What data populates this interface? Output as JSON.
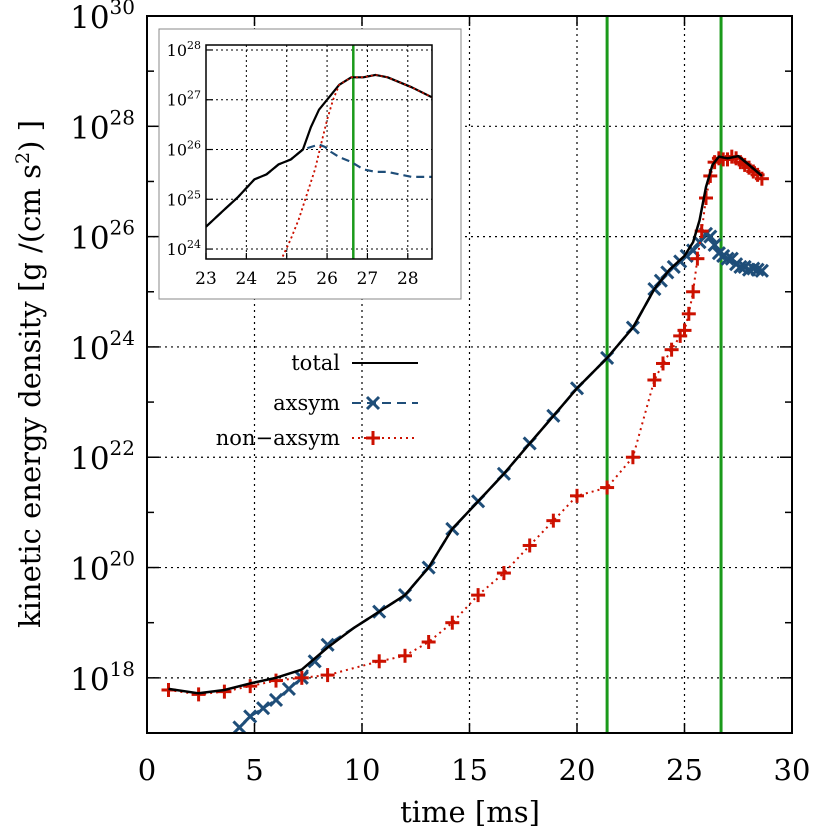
{
  "chart_data": {
    "type": "line",
    "xlabel": "time [ms]",
    "ylabel": "kinetic energy density [g /(cm s",
    "ylabel_sup": "2",
    "ylabel_tail": ") ]",
    "xlim": [
      0,
      30
    ],
    "ylim_log10": [
      17,
      30
    ],
    "y_scale": "log",
    "x_ticks": [
      "0",
      "5",
      "10",
      "15",
      "20",
      "25",
      "30"
    ],
    "y_ticks": [
      {
        "base": "10",
        "exp": "18"
      },
      {
        "base": "10",
        "exp": "20"
      },
      {
        "base": "10",
        "exp": "22"
      },
      {
        "base": "10",
        "exp": "24"
      },
      {
        "base": "10",
        "exp": "26"
      },
      {
        "base": "10",
        "exp": "28"
      },
      {
        "base": "10",
        "exp": "30"
      }
    ],
    "grid": true,
    "legend_placement": "center-left",
    "vertical_lines": [
      21.4,
      26.7
    ],
    "vline_color": "#1a9a1a",
    "series": [
      {
        "name": "total",
        "style": "solid",
        "color": "#000000",
        "x": [
          1.0,
          2.4,
          3.6,
          4.8,
          6.0,
          7.2,
          8.4,
          9.6,
          10.8,
          12.0,
          13.1,
          14.2,
          15.4,
          16.6,
          17.8,
          18.9,
          20.0,
          21.4,
          22.6,
          23.6,
          24.3,
          25.0,
          25.4,
          25.7,
          26.0,
          26.3,
          26.6,
          27.0,
          27.5,
          28.0,
          28.6
        ],
        "y_log10": [
          17.8,
          17.72,
          17.78,
          17.9,
          18.0,
          18.15,
          18.55,
          18.9,
          19.2,
          19.5,
          20.0,
          20.7,
          21.2,
          21.7,
          22.25,
          22.75,
          23.25,
          23.8,
          24.35,
          25.05,
          25.4,
          25.65,
          25.9,
          26.3,
          26.9,
          27.3,
          27.45,
          27.42,
          27.46,
          27.3,
          27.1
        ]
      },
      {
        "name": "axsym",
        "style": "dashed",
        "color": "#1f4e79",
        "marker": "x",
        "x": [
          4.3,
          4.8,
          5.4,
          6.0,
          6.6,
          7.2,
          7.8,
          8.4,
          10.8,
          12.0,
          13.1,
          14.2,
          15.4,
          16.6,
          17.8,
          18.9,
          20.0,
          21.4,
          22.6,
          23.6,
          23.9,
          24.2,
          24.5,
          24.8,
          25.1,
          25.4,
          25.7,
          26.0,
          26.2,
          26.4,
          26.6,
          26.8,
          27.0,
          27.2,
          27.4,
          27.6,
          27.8,
          28.0,
          28.2,
          28.4,
          28.6
        ],
        "y_log10": [
          17.1,
          17.3,
          17.45,
          17.6,
          17.8,
          18.0,
          18.3,
          18.6,
          19.2,
          19.5,
          20.0,
          20.7,
          21.2,
          21.7,
          22.25,
          22.75,
          23.25,
          23.8,
          24.35,
          25.05,
          25.2,
          25.35,
          25.45,
          25.55,
          25.65,
          25.75,
          25.9,
          26.05,
          26.0,
          25.85,
          25.7,
          25.65,
          25.6,
          25.6,
          25.5,
          25.45,
          25.45,
          25.4,
          25.42,
          25.4,
          25.38
        ]
      },
      {
        "name": "non−axsym",
        "style": "dotted",
        "color": "#cc1100",
        "marker": "+",
        "x": [
          1.0,
          2.4,
          3.6,
          4.8,
          6.0,
          7.2,
          8.4,
          10.8,
          12.0,
          13.1,
          14.2,
          15.4,
          16.6,
          17.8,
          18.9,
          20.0,
          21.4,
          22.6,
          23.6,
          24.0,
          24.4,
          24.8,
          25.0,
          25.2,
          25.4,
          25.6,
          25.8,
          26.0,
          26.2,
          26.4,
          26.6,
          26.8,
          27.0,
          27.2,
          27.4,
          27.6,
          27.8,
          28.0,
          28.2,
          28.4,
          28.6
        ],
        "y_log10": [
          17.78,
          17.7,
          17.75,
          17.85,
          17.95,
          18.0,
          18.05,
          18.3,
          18.4,
          18.65,
          19.0,
          19.5,
          19.9,
          20.4,
          20.85,
          21.3,
          21.45,
          22.0,
          23.4,
          23.7,
          23.95,
          24.2,
          24.3,
          24.6,
          25.0,
          25.6,
          26.1,
          26.7,
          27.1,
          27.35,
          27.42,
          27.4,
          27.4,
          27.45,
          27.42,
          27.35,
          27.3,
          27.25,
          27.18,
          27.12,
          27.05
        ]
      }
    ],
    "inset": {
      "xlim": [
        23,
        28.6
      ],
      "ylim_log10": [
        23.8,
        28.1
      ],
      "x_ticks": [
        "23",
        "24",
        "25",
        "26",
        "27",
        "28"
      ],
      "y_ticks": [
        {
          "base": "10",
          "exp": "24"
        },
        {
          "base": "10",
          "exp": "25"
        },
        {
          "base": "10",
          "exp": "26"
        },
        {
          "base": "10",
          "exp": "27"
        },
        {
          "base": "10",
          "exp": "28"
        }
      ],
      "vertical_line": 26.65,
      "series": [
        {
          "name": "total",
          "x": [
            23.0,
            23.4,
            23.8,
            24.2,
            24.5,
            24.8,
            25.1,
            25.4,
            25.6,
            25.8,
            25.95,
            26.1,
            26.3,
            26.6,
            26.9,
            27.2,
            27.5,
            27.8,
            28.1,
            28.6
          ],
          "y_log10": [
            24.45,
            24.75,
            25.05,
            25.4,
            25.5,
            25.7,
            25.8,
            26.0,
            26.45,
            26.8,
            26.95,
            27.1,
            27.3,
            27.45,
            27.45,
            27.5,
            27.45,
            27.35,
            27.25,
            27.05
          ]
        },
        {
          "name": "axsym",
          "x": [
            23.0,
            23.4,
            23.8,
            24.2,
            24.5,
            24.8,
            25.1,
            25.4,
            25.6,
            25.8,
            25.95,
            26.1,
            26.3,
            26.6,
            26.9,
            27.2,
            27.5,
            27.8,
            28.1,
            28.6
          ],
          "y_log10": [
            24.45,
            24.75,
            25.05,
            25.4,
            25.5,
            25.7,
            25.8,
            26.0,
            26.05,
            26.1,
            26.05,
            25.95,
            25.85,
            25.75,
            25.6,
            25.55,
            25.55,
            25.5,
            25.45,
            25.45
          ]
        },
        {
          "name": "non−axsym",
          "x": [
            24.9,
            25.1,
            25.3,
            25.5,
            25.7,
            25.85,
            26.0,
            26.15,
            26.3,
            26.6,
            26.9,
            27.2,
            27.5,
            27.8,
            28.1,
            28.6
          ],
          "y_log10": [
            23.85,
            24.2,
            24.6,
            25.1,
            25.6,
            26.1,
            26.6,
            27.0,
            27.3,
            27.45,
            27.45,
            27.5,
            27.45,
            27.35,
            27.25,
            27.05
          ]
        }
      ]
    }
  }
}
